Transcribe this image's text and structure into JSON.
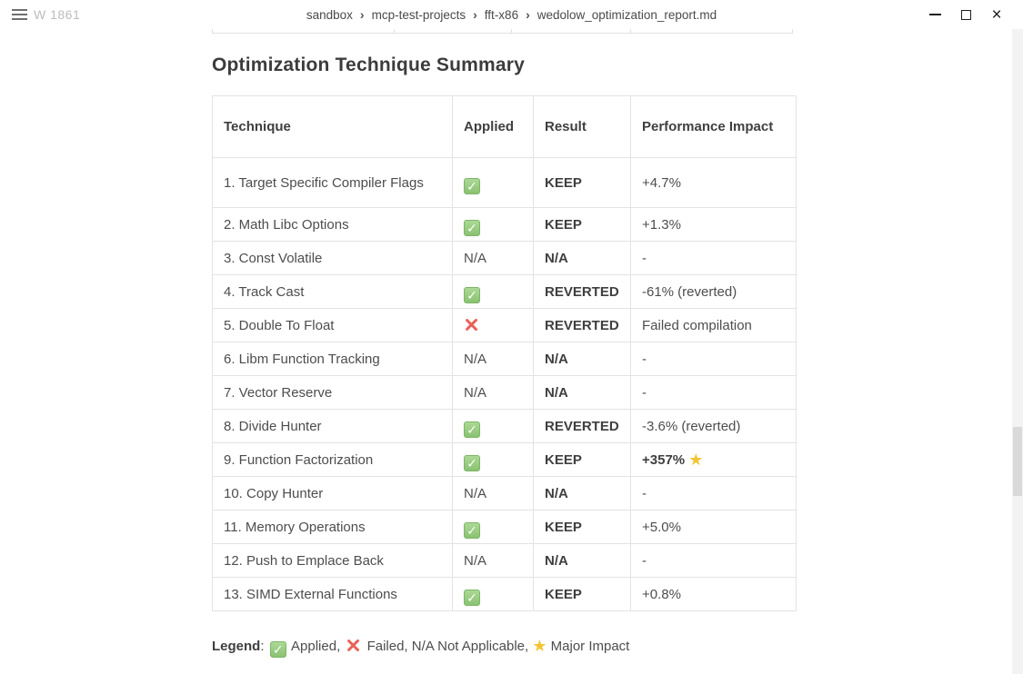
{
  "window": {
    "app_label": "W 1861",
    "breadcrumb": [
      "sandbox",
      "mcp-test-projects",
      "fft-x86",
      "wedolow_optimization_report.md"
    ],
    "breadcrumb_separator": "›",
    "controls": {
      "close_glyph": "×"
    }
  },
  "icons": {
    "check": "✓",
    "star": "★"
  },
  "colors": {
    "check_green": "#8ac271",
    "cross_red": "#e8635a",
    "star_gold": "#f4c431",
    "border": "#e3e3e3",
    "text": "#4d4d4d"
  },
  "document": {
    "heading": "Optimization Technique Summary",
    "table": {
      "headers": [
        "Technique",
        "Applied",
        "Result",
        "Performance Impact"
      ],
      "rows": [
        {
          "technique": "1. Target Specific Compiler Flags",
          "applied": "check",
          "result": "KEEP",
          "impact": "+4.7%",
          "impact_bold": false,
          "star": false,
          "tall": true
        },
        {
          "technique": "2. Math Libc Options",
          "applied": "check",
          "result": "KEEP",
          "impact": "+1.3%",
          "impact_bold": false,
          "star": false,
          "tall": false
        },
        {
          "technique": "3. Const Volatile",
          "applied": "N/A",
          "result": "N/A",
          "impact": "-",
          "impact_bold": false,
          "star": false,
          "tall": false
        },
        {
          "technique": "4. Track Cast",
          "applied": "check",
          "result": "REVERTED",
          "impact": "-61% (reverted)",
          "impact_bold": false,
          "star": false,
          "tall": false
        },
        {
          "technique": "5. Double To Float",
          "applied": "cross",
          "result": "REVERTED",
          "impact": "Failed compilation",
          "impact_bold": false,
          "star": false,
          "tall": false
        },
        {
          "technique": "6. Libm Function Tracking",
          "applied": "N/A",
          "result": "N/A",
          "impact": "-",
          "impact_bold": false,
          "star": false,
          "tall": false
        },
        {
          "technique": "7. Vector Reserve",
          "applied": "N/A",
          "result": "N/A",
          "impact": "-",
          "impact_bold": false,
          "star": false,
          "tall": false
        },
        {
          "technique": "8. Divide Hunter",
          "applied": "check",
          "result": "REVERTED",
          "impact": "-3.6% (reverted)",
          "impact_bold": false,
          "star": false,
          "tall": false
        },
        {
          "technique": "9. Function Factorization",
          "applied": "check",
          "result": "KEEP",
          "impact": "+357%",
          "impact_bold": true,
          "star": true,
          "tall": false
        },
        {
          "technique": "10. Copy Hunter",
          "applied": "N/A",
          "result": "N/A",
          "impact": "-",
          "impact_bold": false,
          "star": false,
          "tall": false
        },
        {
          "technique": "11. Memory Operations",
          "applied": "check",
          "result": "KEEP",
          "impact": "+5.0%",
          "impact_bold": false,
          "star": false,
          "tall": false
        },
        {
          "technique": "12. Push to Emplace Back",
          "applied": "N/A",
          "result": "N/A",
          "impact": "-",
          "impact_bold": false,
          "star": false,
          "tall": false
        },
        {
          "technique": "13. SIMD External Functions",
          "applied": "check",
          "result": "KEEP",
          "impact": "+0.8%",
          "impact_bold": false,
          "star": false,
          "tall": false
        }
      ]
    },
    "legend": {
      "label": "Legend",
      "segments": [
        {
          "type": "text",
          "value": ": "
        },
        {
          "type": "icon",
          "value": "check"
        },
        {
          "type": "text",
          "value": " Applied, "
        },
        {
          "type": "icon",
          "value": "cross"
        },
        {
          "type": "text",
          "value": " Failed, N/A Not Applicable, "
        },
        {
          "type": "icon",
          "value": "star"
        },
        {
          "type": "text",
          "value": " Major Impact"
        }
      ]
    }
  }
}
